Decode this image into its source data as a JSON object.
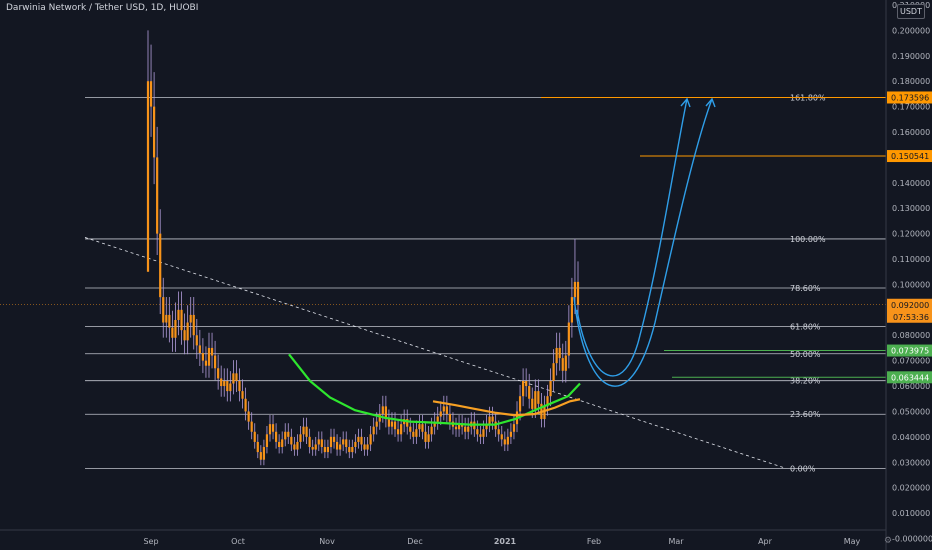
{
  "title": "Darwinia Network / Tether USD, 1D, HUOBI",
  "currency_button": "USDT",
  "colors": {
    "background": "#131722",
    "candle": "#f7931a",
    "wick": "#b39ddb",
    "fib_line": "#e0e3eb",
    "orange_line": "#ff9800",
    "green_line": "#4caf50",
    "ma_green": "#2ee62e",
    "ma_orange": "#f7a023",
    "arrow_blue": "#2f9ee8",
    "trend_line": "#e0e3eb"
  },
  "chart_data": {
    "type": "candlestick",
    "title": "Darwinia Network / Tether USD, 1D, HUOBI",
    "ylim": [
      -0.001,
      0.21
    ],
    "y_ticks": [
      "0.210000",
      "0.200000",
      "0.190000",
      "0.180000",
      "0.170000",
      "0.160000",
      "0.150000",
      "0.140000",
      "0.130000",
      "0.120000",
      "0.110000",
      "0.100000",
      "0.090000",
      "0.080000",
      "0.070000",
      "0.060000",
      "0.050000",
      "0.040000",
      "0.030000",
      "0.020000",
      "0.010000",
      "-0.000000"
    ],
    "x_ticks": [
      "Sep",
      "Oct",
      "Nov",
      "Dec",
      "2021",
      "Feb",
      "Mar",
      "Apr",
      "May"
    ],
    "grid": false,
    "fib_levels": [
      {
        "label": "161.80%",
        "value": 0.173596
      },
      {
        "label": "100.00%",
        "value": 0.1179
      },
      {
        "label": "78.60%",
        "value": 0.0986
      },
      {
        "label": "61.80%",
        "value": 0.0834
      },
      {
        "label": "50.00%",
        "value": 0.0727
      },
      {
        "label": "38.20%",
        "value": 0.0621
      },
      {
        "label": "23.60%",
        "value": 0.0489
      },
      {
        "label": "0.00%",
        "value": 0.0276
      }
    ],
    "horizontal_lines": [
      {
        "value": 0.173596,
        "color": "orange",
        "label": "0.173596"
      },
      {
        "value": 0.150541,
        "color": "orange",
        "label": "0.150541"
      },
      {
        "value": 0.073975,
        "color": "green",
        "label": "0.073975"
      },
      {
        "value": 0.063444,
        "color": "green",
        "label": "0.063444"
      }
    ],
    "current_price": {
      "value": 0.092,
      "label": "0.092000",
      "countdown": "07:53:36"
    },
    "candles_close": [
      0.18,
      0.17,
      0.15,
      0.12,
      0.095,
      0.085,
      0.088,
      0.083,
      0.079,
      0.086,
      0.09,
      0.082,
      0.078,
      0.085,
      0.088,
      0.08,
      0.076,
      0.073,
      0.07,
      0.068,
      0.075,
      0.072,
      0.067,
      0.063,
      0.06,
      0.062,
      0.058,
      0.061,
      0.065,
      0.062,
      0.058,
      0.055,
      0.05,
      0.046,
      0.042,
      0.038,
      0.034,
      0.031,
      0.036,
      0.041,
      0.045,
      0.042,
      0.038,
      0.036,
      0.039,
      0.042,
      0.04,
      0.037,
      0.035,
      0.038,
      0.041,
      0.044,
      0.04,
      0.036,
      0.035,
      0.037,
      0.039,
      0.036,
      0.034,
      0.036,
      0.04,
      0.038,
      0.035,
      0.037,
      0.039,
      0.036,
      0.034,
      0.036,
      0.038,
      0.04,
      0.037,
      0.035,
      0.037,
      0.041,
      0.044,
      0.046,
      0.049,
      0.052,
      0.047,
      0.044,
      0.046,
      0.043,
      0.041,
      0.045,
      0.047,
      0.044,
      0.042,
      0.04,
      0.043,
      0.045,
      0.042,
      0.038,
      0.041,
      0.044,
      0.046,
      0.048,
      0.05,
      0.052,
      0.049,
      0.046,
      0.044,
      0.043,
      0.045,
      0.044,
      0.042,
      0.044,
      0.046,
      0.043,
      0.041,
      0.04,
      0.043,
      0.045,
      0.048,
      0.046,
      0.043,
      0.041,
      0.039,
      0.037,
      0.04,
      0.042,
      0.045,
      0.05,
      0.056,
      0.062,
      0.06,
      0.055,
      0.051,
      0.058,
      0.053,
      0.047,
      0.052,
      0.056,
      0.062,
      0.069,
      0.075,
      0.071,
      0.066,
      0.072,
      0.085,
      0.095,
      0.101,
      0.092
    ],
    "series": [
      {
        "type": "line",
        "color": "green"
      },
      {
        "type": "line",
        "color": "orange"
      }
    ]
  }
}
